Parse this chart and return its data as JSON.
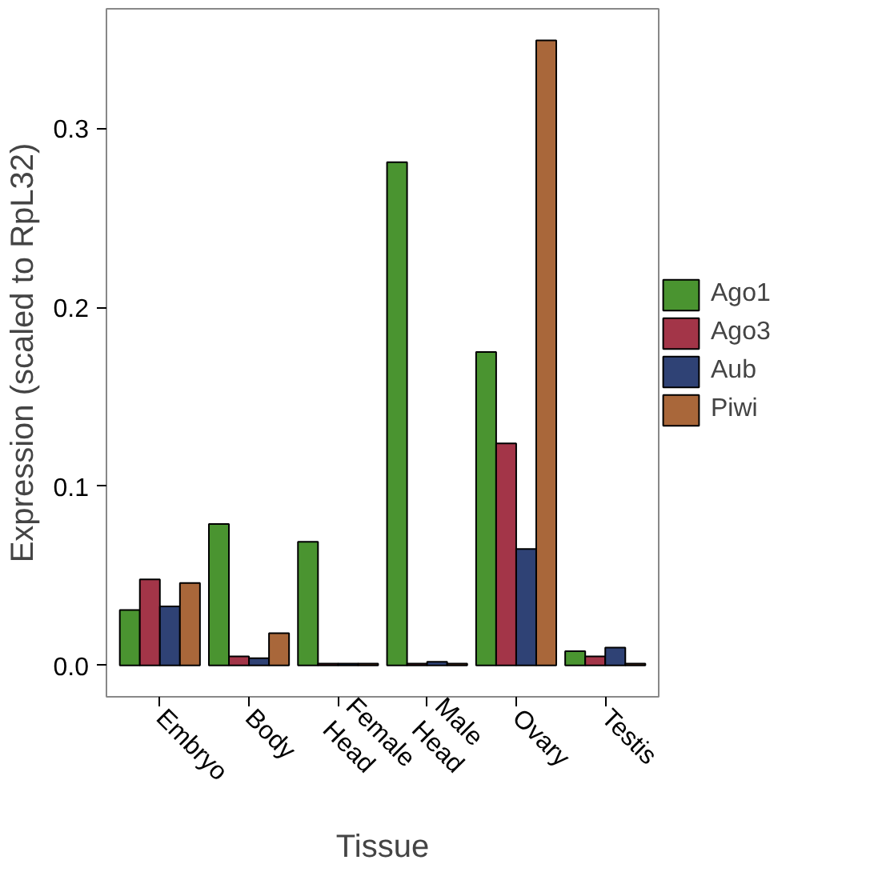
{
  "chart_data": {
    "type": "bar",
    "xlabel": "Tissue",
    "ylabel": "Expression (scaled to RpL32)",
    "categories": [
      "Embryo",
      "Body",
      "Female\nHead",
      "Male\nHead",
      "Ovary",
      "Testis"
    ],
    "series": [
      {
        "name": "Ago1",
        "color": "#4a9430",
        "values": [
          0.031,
          0.079,
          0.069,
          0.281,
          0.175,
          0.008
        ]
      },
      {
        "name": "Ago3",
        "color": "#a33548",
        "values": [
          0.048,
          0.005,
          0.001,
          0.001,
          0.124,
          0.005
        ]
      },
      {
        "name": "Aub",
        "color": "#2f4275",
        "values": [
          0.033,
          0.004,
          0.001,
          0.002,
          0.065,
          0.01
        ]
      },
      {
        "name": "Piwi",
        "color": "#a9673a",
        "values": [
          0.046,
          0.018,
          0.001,
          0.001,
          0.349,
          0.001
        ]
      }
    ],
    "ylim": [
      -0.0175,
      0.3666
    ],
    "yticks": [
      {
        "value": 0,
        "label": "0.0"
      },
      0.1,
      0.2,
      0.3
    ],
    "grid": false,
    "legend": "right"
  }
}
